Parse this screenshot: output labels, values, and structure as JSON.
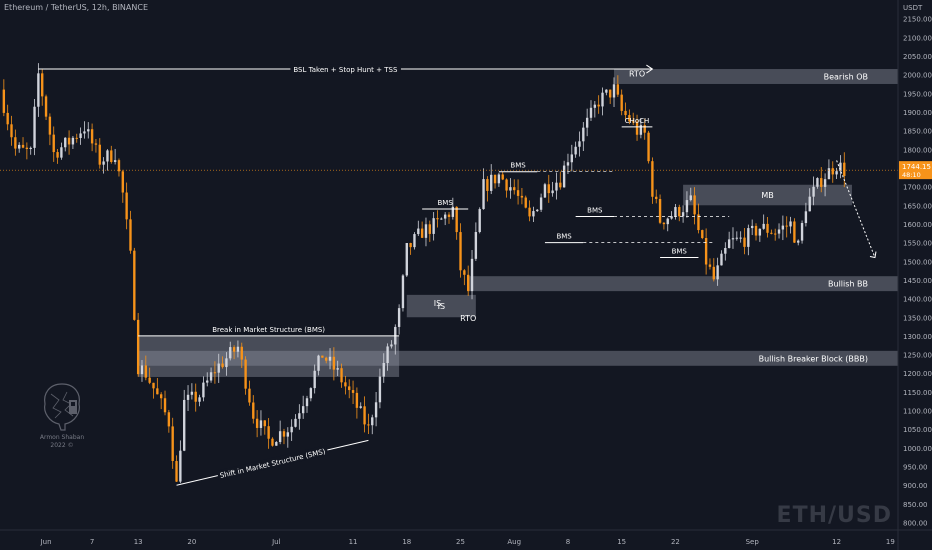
{
  "header": {
    "symbol": "Ethereum / TetherUS, 12h, BINANCE"
  },
  "watermark": "ETH/USD",
  "logo": {
    "name": "Armon Shaban",
    "year": "2022 ©"
  },
  "colors": {
    "bull": "#d1d4dc",
    "bear": "#f7931a",
    "background": "#131722",
    "zone": "#8a8f9b",
    "price_badge": "#f7931a"
  },
  "chart_data": {
    "type": "candlestick",
    "title": "",
    "xlabel": "",
    "ylabel": "USDT",
    "ylim": [
      780,
      2200
    ],
    "y_ticks": [
      800,
      850,
      900,
      950,
      1000,
      1050,
      1100,
      1150,
      1200,
      1250,
      1300,
      1350,
      1400,
      1450,
      1500,
      1550,
      1600,
      1650,
      1700,
      1750,
      1800,
      1850,
      1900,
      1950,
      2000,
      2050,
      2100,
      2150
    ],
    "y_tick_labels": [
      "800.00",
      "850.00",
      "900.00",
      "950.00",
      "1000.00",
      "1050.00",
      "1100.00",
      "1150.00",
      "1200.00",
      "1250.00",
      "1300.00",
      "1350.00",
      "1400.00",
      "1450.00",
      "1500.00",
      "1550.00",
      "1600.00",
      "1650.00",
      "1700.00",
      "1750.00",
      "1800.00",
      "1850.00",
      "1900.00",
      "1950.00",
      "2000.00",
      "2050.00",
      "2100.00",
      "2150.00"
    ],
    "x_range": [
      "2022-05-26",
      "2022-09-20"
    ],
    "x_ticks": [
      {
        "date": "2022-06-01",
        "label": "Jun"
      },
      {
        "date": "2022-06-07",
        "label": "7"
      },
      {
        "date": "2022-06-13",
        "label": "13"
      },
      {
        "date": "2022-06-20",
        "label": "20"
      },
      {
        "date": "2022-07-01",
        "label": "Jul"
      },
      {
        "date": "2022-07-11",
        "label": "11"
      },
      {
        "date": "2022-07-18",
        "label": "18"
      },
      {
        "date": "2022-07-25",
        "label": "25"
      },
      {
        "date": "2022-08-01",
        "label": "Aug"
      },
      {
        "date": "2022-08-08",
        "label": "8"
      },
      {
        "date": "2022-08-15",
        "label": "15"
      },
      {
        "date": "2022-08-22",
        "label": "22"
      },
      {
        "date": "2022-09-01",
        "label": "Sep"
      },
      {
        "date": "2022-09-12",
        "label": "12"
      },
      {
        "date": "2022-09-19",
        "label": "19"
      }
    ],
    "current_price": "1744.15",
    "current_price_value": 1744.15,
    "countdown": "48:10",
    "anchors": [
      [
        "2022-05-26",
        1960
      ],
      [
        "2022-05-28",
        1800
      ],
      [
        "2022-05-30",
        1790
      ],
      [
        "2022-05-31",
        2000
      ],
      [
        "2022-06-02",
        1790
      ],
      [
        "2022-06-04",
        1820
      ],
      [
        "2022-06-06",
        1860
      ],
      [
        "2022-06-08",
        1770
      ],
      [
        "2022-06-10",
        1790
      ],
      [
        "2022-06-11",
        1680
      ],
      [
        "2022-06-12",
        1510
      ],
      [
        "2022-06-13",
        1220
      ],
      [
        "2022-06-14",
        1200
      ],
      [
        "2022-06-15",
        1160
      ],
      [
        "2022-06-17",
        1070
      ],
      [
        "2022-06-18",
        900
      ],
      [
        "2022-06-19",
        1120
      ],
      [
        "2022-06-21",
        1140
      ],
      [
        "2022-06-23",
        1210
      ],
      [
        "2022-06-26",
        1270
      ],
      [
        "2022-06-28",
        1090
      ],
      [
        "2022-06-30",
        1020
      ],
      [
        "2022-07-03",
        1060
      ],
      [
        "2022-07-05",
        1150
      ],
      [
        "2022-07-07",
        1250
      ],
      [
        "2022-07-09",
        1200
      ],
      [
        "2022-07-11",
        1130
      ],
      [
        "2022-07-13",
        1050
      ],
      [
        "2022-07-15",
        1230
      ],
      [
        "2022-07-16",
        1280
      ],
      [
        "2022-07-17",
        1360
      ],
      [
        "2022-07-18",
        1530
      ],
      [
        "2022-07-20",
        1580
      ],
      [
        "2022-07-22",
        1600
      ],
      [
        "2022-07-24",
        1640
      ],
      [
        "2022-07-25",
        1480
      ],
      [
        "2022-07-26",
        1420
      ],
      [
        "2022-07-28",
        1700
      ],
      [
        "2022-07-30",
        1730
      ],
      [
        "2022-08-01",
        1690
      ],
      [
        "2022-08-03",
        1610
      ],
      [
        "2022-08-05",
        1700
      ],
      [
        "2022-08-07",
        1720
      ],
      [
        "2022-08-08",
        1780
      ],
      [
        "2022-08-10",
        1850
      ],
      [
        "2022-08-12",
        1930
      ],
      [
        "2022-08-14",
        1960
      ],
      [
        "2022-08-15",
        1900
      ],
      [
        "2022-08-16",
        1880
      ],
      [
        "2022-08-17",
        1850
      ],
      [
        "2022-08-18",
        1840
      ],
      [
        "2022-08-19",
        1690
      ],
      [
        "2022-08-20",
        1610
      ],
      [
        "2022-08-22",
        1630
      ],
      [
        "2022-08-24",
        1660
      ],
      [
        "2022-08-26",
        1500
      ],
      [
        "2022-08-27",
        1450
      ],
      [
        "2022-08-29",
        1550
      ],
      [
        "2022-08-31",
        1560
      ],
      [
        "2022-09-02",
        1590
      ],
      [
        "2022-09-04",
        1580
      ],
      [
        "2022-09-06",
        1600
      ],
      [
        "2022-09-07",
        1540
      ],
      [
        "2022-09-08",
        1650
      ],
      [
        "2022-09-10",
        1720
      ],
      [
        "2022-09-12",
        1760
      ],
      [
        "2022-09-13",
        1744
      ]
    ],
    "zones": [
      {
        "name": "Bearish OB",
        "label_value": "Bearish OB",
        "start": "2022-08-14",
        "end": "2022-09-20",
        "top": 2015,
        "bottom": 1975
      },
      {
        "name": "MB",
        "label_value": "MB",
        "start": "2022-08-23",
        "end": "2022-09-14",
        "top": 1705,
        "bottom": 1650
      },
      {
        "name": "Bullish BB",
        "label_value": "Bullish BB",
        "start": "2022-07-26",
        "end": "2022-09-20",
        "top": 1460,
        "bottom": 1420
      },
      {
        "name": "Bullish Breaker Block (BBB)",
        "label_value": "Bullish Breaker Block (BBB)",
        "start": "2022-06-13",
        "end": "2022-09-20",
        "top": 1260,
        "bottom": 1220
      },
      {
        "name": "BMS range",
        "label_value": "",
        "start": "2022-06-13",
        "end": "2022-07-17",
        "top": 1300,
        "bottom": 1190
      },
      {
        "name": "IS",
        "label_value": "IS",
        "start": "2022-07-18",
        "end": "2022-07-27",
        "top": 1410,
        "bottom": 1350
      }
    ],
    "lines": [
      {
        "label": "BSL Taken + Stop Hunt + TSS",
        "start": "2022-05-31",
        "end": "2022-08-19",
        "y": 2015,
        "style": "solid",
        "arrow": true
      },
      {
        "label": "Break in Market Structure (BMS)",
        "start": "2022-06-13",
        "end": "2022-07-17",
        "y": 1300,
        "style": "solid"
      },
      {
        "label": "BMS",
        "start": "2022-07-20",
        "end": "2022-07-26",
        "y": 1640,
        "style": "solid"
      },
      {
        "label": "BMS",
        "start": "2022-07-30",
        "end": "2022-08-04",
        "y": 1740,
        "style": "solid"
      },
      {
        "label": "",
        "start": "2022-08-04",
        "end": "2022-08-14",
        "y": 1740,
        "style": "dashed"
      },
      {
        "label": "BMS",
        "start": "2022-08-05",
        "end": "2022-08-10",
        "y": 1550,
        "style": "solid"
      },
      {
        "label": "",
        "start": "2022-08-10",
        "end": "2022-08-27",
        "y": 1550,
        "style": "dashed"
      },
      {
        "label": "BMS",
        "start": "2022-08-09",
        "end": "2022-08-14",
        "y": 1620,
        "style": "solid"
      },
      {
        "label": "",
        "start": "2022-08-14",
        "end": "2022-08-29",
        "y": 1620,
        "style": "dashed"
      },
      {
        "label": "BMS",
        "start": "2022-08-20",
        "end": "2022-08-25",
        "y": 1510,
        "style": "solid"
      },
      {
        "label": "CHoCH",
        "start": "2022-08-15",
        "end": "2022-08-19",
        "y": 1860,
        "style": "solid"
      }
    ],
    "annotations": [
      {
        "text": "Shift in Market Structure (SMS)",
        "from": [
          "2022-06-18",
          900
        ],
        "to": [
          "2022-07-13",
          1020
        ]
      },
      {
        "text": "RTO",
        "at": [
          "2022-07-26",
          1340
        ]
      },
      {
        "text": "RTO",
        "at": [
          "2022-08-17",
          1995
        ]
      },
      {
        "text": "IS",
        "at": [
          "2022-07-22",
          1380
        ]
      }
    ],
    "projection": [
      [
        "2022-09-12",
        1770
      ],
      [
        "2022-09-17",
        1510
      ]
    ]
  }
}
